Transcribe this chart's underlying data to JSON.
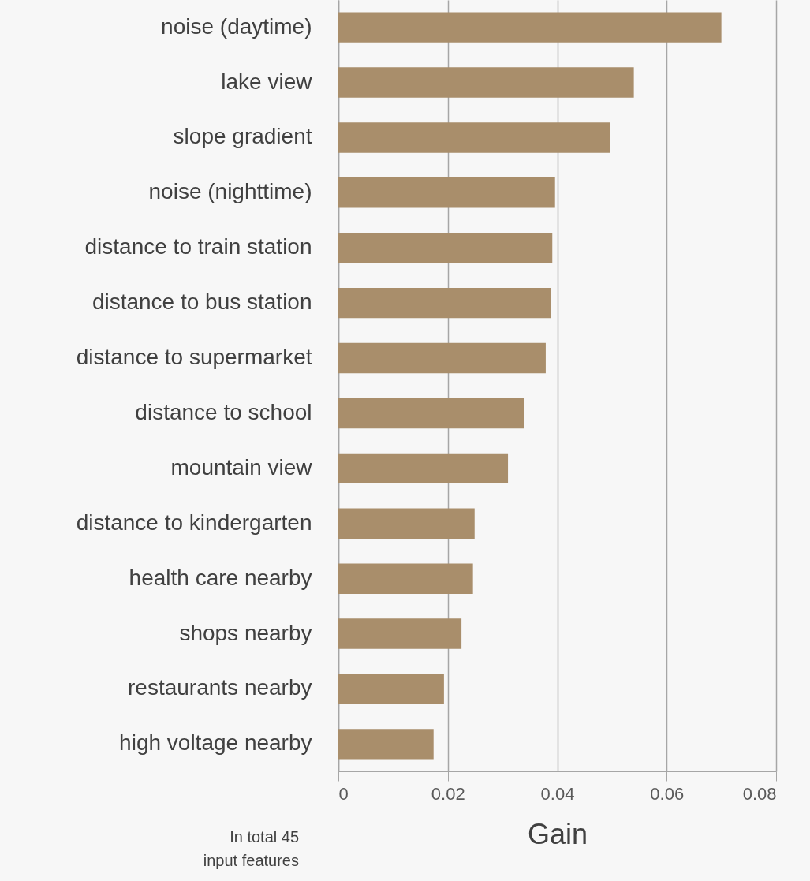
{
  "chart_data": {
    "type": "bar",
    "orientation": "horizontal",
    "xlabel": "Gain",
    "categories": [
      "noise (daytime)",
      "lake view",
      "slope gradient",
      "noise (nighttime)",
      "distance to train station",
      "distance to bus station",
      "distance to supermarket",
      "distance to school",
      "mountain view",
      "distance to kindergarten",
      "health care nearby",
      "shops nearby",
      "restaurants nearby",
      "high voltage nearby"
    ],
    "values": [
      0.07,
      0.054,
      0.0496,
      0.0396,
      0.0391,
      0.0388,
      0.0379,
      0.034,
      0.031,
      0.0249,
      0.0246,
      0.0225,
      0.0193,
      0.0174
    ],
    "color": "#a98e6b",
    "xlim": [
      0,
      0.08
    ],
    "xticks": [
      0,
      0.02,
      0.04,
      0.06,
      0.08
    ],
    "grid": "x",
    "annotations": [
      "In total 45\ninput features"
    ]
  }
}
